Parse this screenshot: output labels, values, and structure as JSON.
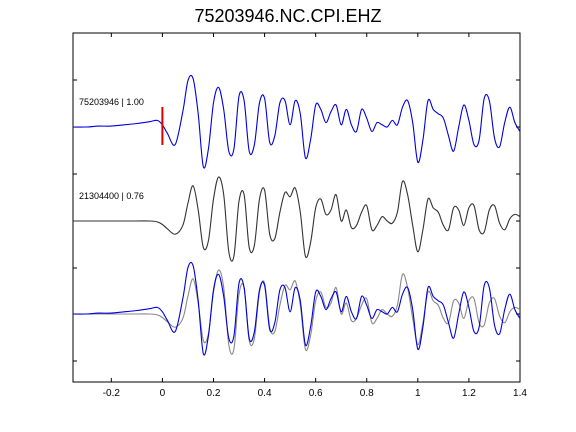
{
  "chart_data": {
    "type": "line",
    "title": "75203946.NC.CPI.EHZ",
    "xlabel": "",
    "ylabel": "",
    "xlim": [
      -0.35,
      1.4
    ],
    "xticks": [
      -0.2,
      0,
      0.2,
      0.4,
      0.6,
      0.8,
      1,
      1.2,
      1.4
    ],
    "xtick_labels": [
      "-0.2",
      "0",
      "0.2",
      "0.4",
      "0.6",
      "0.8",
      "1",
      "1.2",
      "1.4"
    ],
    "grid": false,
    "pick_marker": {
      "x": 0,
      "color": "#dd0000"
    },
    "panels": [
      {
        "label": "75203946 | 1.00",
        "series": [
          "master"
        ]
      },
      {
        "label": "21304400 | 0.76",
        "series": [
          "match"
        ]
      },
      {
        "label": "",
        "series": [
          "match",
          "master"
        ]
      }
    ],
    "series": [
      {
        "id": "master",
        "color": "#0000dd",
        "x": [
          -0.35,
          -0.3,
          -0.25,
          -0.2,
          -0.15,
          -0.1,
          -0.05,
          -0.02,
          0,
          0.02,
          0.05,
          0.08,
          0.1,
          0.12,
          0.14,
          0.16,
          0.18,
          0.2,
          0.22,
          0.24,
          0.26,
          0.28,
          0.3,
          0.32,
          0.34,
          0.36,
          0.38,
          0.4,
          0.42,
          0.44,
          0.46,
          0.48,
          0.5,
          0.52,
          0.54,
          0.56,
          0.58,
          0.6,
          0.62,
          0.64,
          0.66,
          0.68,
          0.7,
          0.72,
          0.74,
          0.76,
          0.78,
          0.8,
          0.82,
          0.84,
          0.86,
          0.88,
          0.9,
          0.92,
          0.94,
          0.96,
          0.98,
          1,
          1.02,
          1.04,
          1.06,
          1.08,
          1.1,
          1.12,
          1.14,
          1.16,
          1.18,
          1.2,
          1.22,
          1.24,
          1.26,
          1.28,
          1.3,
          1.32,
          1.34,
          1.36,
          1.38,
          1.4
        ],
        "y": [
          0,
          0,
          0.02,
          0.02,
          0.05,
          0.08,
          0.12,
          0.15,
          0.05,
          -0.15,
          -0.4,
          0.35,
          1.05,
          1.1,
          0.3,
          -0.9,
          -0.5,
          0.55,
          0.9,
          0.4,
          -0.55,
          -0.5,
          0.7,
          0.6,
          -0.55,
          -0.4,
          0.55,
          0.65,
          -0.35,
          -0.2,
          0.55,
          0.6,
          0.05,
          0.6,
          0.3,
          -0.7,
          -0.3,
          0.5,
          0.4,
          0.1,
          0.35,
          0.5,
          0.05,
          0.4,
          0.05,
          -0.1,
          0.4,
          0.2,
          -0.1,
          0.1,
          0.05,
          0,
          0.15,
          0.05,
          0.45,
          0.6,
          0.1,
          -0.8,
          -0.3,
          0.6,
          0.4,
          0.3,
          0.2,
          -0.2,
          -0.55,
          0.0,
          0.5,
          0.15,
          -0.4,
          -0.3,
          0.65,
          0.6,
          -0.25,
          -0.45,
          0.1,
          0.45,
          0.1,
          -0.1
        ]
      },
      {
        "id": "match",
        "color": "#333333",
        "x": [
          -0.35,
          -0.3,
          -0.25,
          -0.2,
          -0.15,
          -0.1,
          -0.05,
          -0.02,
          0,
          0.02,
          0.05,
          0.08,
          0.1,
          0.12,
          0.14,
          0.16,
          0.18,
          0.2,
          0.22,
          0.24,
          0.26,
          0.28,
          0.3,
          0.32,
          0.34,
          0.36,
          0.38,
          0.4,
          0.42,
          0.44,
          0.46,
          0.48,
          0.5,
          0.52,
          0.54,
          0.56,
          0.58,
          0.6,
          0.62,
          0.64,
          0.66,
          0.68,
          0.7,
          0.72,
          0.74,
          0.76,
          0.78,
          0.8,
          0.82,
          0.84,
          0.86,
          0.88,
          0.9,
          0.92,
          0.94,
          0.96,
          0.98,
          1,
          1.02,
          1.04,
          1.06,
          1.08,
          1.1,
          1.12,
          1.14,
          1.16,
          1.18,
          1.2,
          1.22,
          1.24,
          1.26,
          1.28,
          1.3,
          1.32,
          1.34,
          1.36,
          1.38,
          1.4
        ],
        "y": [
          0,
          0,
          0,
          0,
          0,
          0,
          0,
          -0.02,
          -0.08,
          -0.18,
          -0.3,
          -0.1,
          0.4,
          0.8,
          0.25,
          -0.6,
          -0.45,
          0.5,
          1.0,
          0.6,
          -0.7,
          -0.8,
          0.45,
          0.6,
          -0.6,
          -0.55,
          0.5,
          0.7,
          -0.3,
          -0.4,
          0.2,
          0.65,
          0.55,
          0.75,
          0.2,
          -0.8,
          -0.5,
          0.3,
          0.5,
          0.15,
          0.25,
          0.6,
          0.0,
          0.25,
          -0.15,
          -0.1,
          0.2,
          0.35,
          -0.2,
          -0.1,
          0.1,
          0.0,
          -0.05,
          0.2,
          0.9,
          0.6,
          -0.1,
          -0.7,
          -0.2,
          0.5,
          0.3,
          0.2,
          -0.1,
          -0.2,
          0.3,
          0.25,
          -0.1,
          0.3,
          0.35,
          -0.2,
          -0.25,
          0.25,
          0.35,
          -0.05,
          -0.2,
          0.05,
          0.15,
          0.1
        ]
      }
    ]
  }
}
